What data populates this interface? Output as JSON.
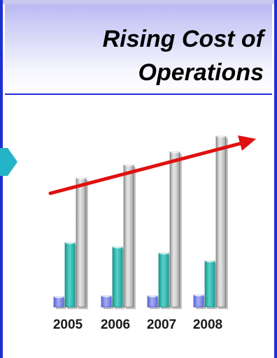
{
  "slide": {
    "title_line1": "Rising Cost of",
    "title_line2": "Operations"
  },
  "icons": {
    "nav": "chevron-right-icon",
    "trend": "trend-arrow-icon"
  },
  "colors": {
    "frame": "#1f2fd6",
    "series_small": "#7b83e8",
    "series_mid": "#2fb8b0",
    "series_large": "#b9b9b9",
    "trend_arrow": "#e01010",
    "chevron": "#25b3c7"
  },
  "chart_data": {
    "type": "bar",
    "title": "Rising Cost of Operations",
    "categories": [
      "2005",
      "2006",
      "2007",
      "2008"
    ],
    "series": [
      {
        "values": [
          1.2,
          1.3,
          1.3,
          1.4
        ]
      },
      {
        "values": [
          7.4,
          6.9,
          6.2,
          5.3
        ]
      },
      {
        "values": [
          14.8,
          16.3,
          17.8,
          19.6
        ]
      }
    ],
    "ylim": [
      0,
      20
    ],
    "grid": false,
    "legend": "none",
    "trend": "upward arrow across bars"
  }
}
